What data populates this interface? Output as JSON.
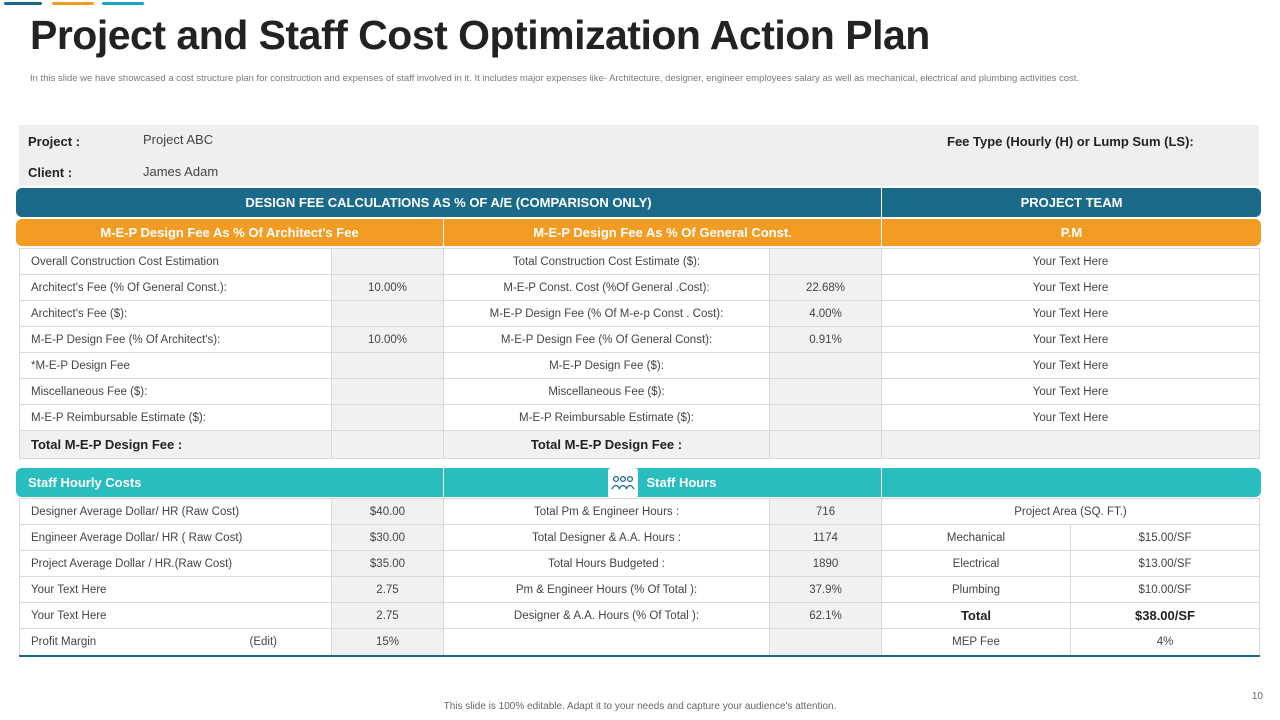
{
  "colors": {
    "navy": "#1b6a8a",
    "orange": "#f39c24",
    "teal": "#29bdbd",
    "light_blue": "#1aa3c9"
  },
  "header": {
    "title": "Project and Staff Cost Optimization Action Plan",
    "subtitle": "In this slide we have showcased a cost structure plan for construction and expenses of staff involved in it. It includes major  expenses like- Architecture, designer, engineer employees salary as well as mechanical, electrical and plumbing  activities cost."
  },
  "info": {
    "project_label": "Project :",
    "project_value": "Project ABC",
    "client_label": "Client :",
    "client_value": "James Adam",
    "fee_type_label": "Fee Type (Hourly (H) or Lump Sum (LS):"
  },
  "bars": {
    "design_fee": "DESIGN FEE CALCULATIONS AS % OF A/E (COMPARISON ONLY)",
    "project_team": "PROJECT TEAM",
    "mep_architect": "M-E-P Design Fee As % Of Architect's Fee",
    "mep_general": "M-E-P Design Fee As % Of General Const.",
    "pm": "P.M",
    "staff_hourly": "Staff Hourly Costs",
    "staff_hours": "Staff Hours"
  },
  "fee_rows": [
    {
      "a": "Overall Construction Cost Estimation",
      "b": "",
      "c": "Total Construction Cost Estimate ($):",
      "d": "",
      "e": "Your Text Here"
    },
    {
      "a": "Architect's Fee (% Of General Const.):",
      "b": "10.00%",
      "c": "M-E-P Const. Cost (%Of General .Cost):",
      "d": "22.68%",
      "e": "Your Text Here"
    },
    {
      "a": "Architect's Fee ($):",
      "b": "",
      "c": "M-E-P Design Fee (% Of  M-e-p Const . Cost):",
      "d": "4.00%",
      "e": "Your Text Here"
    },
    {
      "a": "M-E-P Design Fee (% Of Architect's):",
      "b": "10.00%",
      "c": "M-E-P Design Fee (% Of General Const):",
      "d": "0.91%",
      "e": "Your Text Here"
    },
    {
      "a": "*M-E-P Design Fee",
      "b": "",
      "c": "M-E-P Design Fee ($):",
      "d": "",
      "e": "Your Text Here"
    },
    {
      "a": "Miscellaneous Fee ($):",
      "b": "",
      "c": "Miscellaneous Fee ($):",
      "d": "",
      "e": "Your Text Here"
    },
    {
      "a": "M-E-P Reimbursable Estimate ($):",
      "b": "",
      "c": "M-E-P Reimbursable Estimate ($):",
      "d": "",
      "e": "Your Text Here"
    }
  ],
  "total_row": {
    "a": "Total M-E-P Design Fee :",
    "c": "Total M-E-P Design Fee :"
  },
  "staff_rows": [
    {
      "a": "Designer Average Dollar/ HR (Raw Cost)",
      "b": "$40.00",
      "c": "Total Pm & Engineer Hours :",
      "d": "716",
      "e": "Project Area (SQ. FT.)",
      "f": ""
    },
    {
      "a": "Engineer Average Dollar/ HR ( Raw Cost)",
      "b": "$30.00",
      "c": "Total Designer & A.A.  Hours :",
      "d": "1174",
      "e": "Mechanical",
      "f": "$15.00/SF"
    },
    {
      "a": "Project Average Dollar / HR.(Raw Cost)",
      "b": "$35.00",
      "c": "Total Hours Budgeted :",
      "d": "1890",
      "e": "Electrical",
      "f": "$13.00/SF"
    },
    {
      "a": "Your Text Here",
      "b": "2.75",
      "c": "Pm & Engineer Hours (% Of Total ):",
      "d": "37.9%",
      "e": "Plumbing",
      "f": "$10.00/SF"
    },
    {
      "a": "Your Text Here",
      "b": "2.75",
      "c": "Designer & A.A.  Hours (% Of Total ):",
      "d": "62.1%",
      "e": "Total",
      "f": "$38.00/SF"
    }
  ],
  "profit_row": {
    "a": "Profit Margin",
    "edit": "(Edit)",
    "b": "15%",
    "e": "MEP Fee",
    "f": "4%"
  },
  "footer": {
    "text": "This slide is 100% editable. Adapt it to your needs and capture your audience's attention.",
    "page": "10"
  },
  "icons": {
    "team": "team-icon"
  }
}
